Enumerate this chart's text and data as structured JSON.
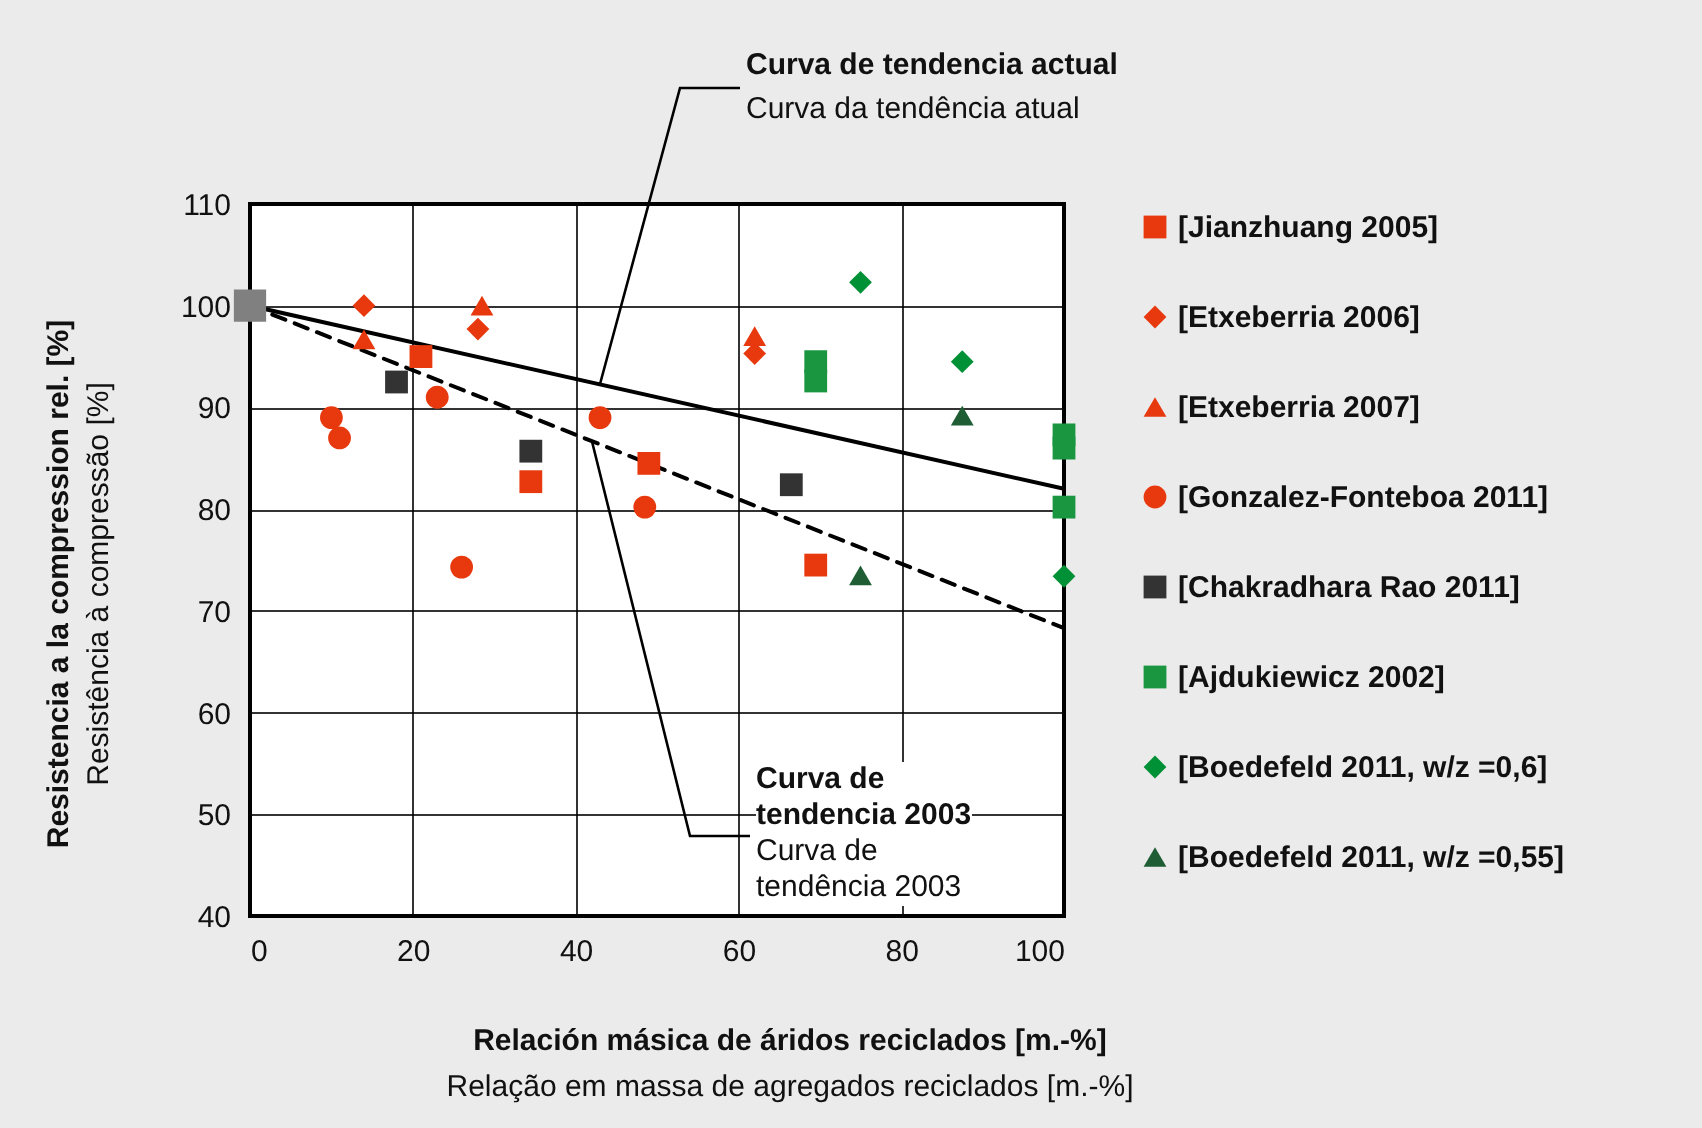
{
  "chart_data": {
    "type": "scatter",
    "xlabel": "Relación másica de áridos reciclados [m.-%]\nRelação em massa de agregados reciclados [m.-%]",
    "ylabel": "Resistencia a la compression rel. [%]\nResistência à compressão [%]",
    "annotations": [
      {
        "text": "Curva de tendencia actual",
        "x": 43,
        "y": 92.3
      },
      "Curva da tendência atual",
      {
        "text": "Curva de\ntendencia 2003",
        "x": 42,
        "y": 86.7
      },
      "Curva de\ntendência 2003"
    ],
    "xlim": [
      0,
      100
    ],
    "xticks": [
      0,
      20,
      40,
      60,
      80,
      100
    ],
    "ylim": [
      40,
      110
    ],
    "yticks": [
      40,
      50,
      60,
      70,
      80,
      90,
      100,
      110
    ],
    "grid": true,
    "legend": "right",
    "series": [
      {
        "type": "line",
        "color": "#000000",
        "line_style": "solid",
        "x": [
          0,
          100
        ],
        "values": [
          100,
          82
        ]
      },
      {
        "type": "line",
        "color": "#000000",
        "line_style": "dashed",
        "x": [
          0,
          100
        ],
        "values": [
          100,
          68.3
        ]
      },
      {
        "name": "[Jianzhuang 2005]",
        "color": "#e8380d",
        "marker": "square",
        "x": [
          21,
          34.5,
          49,
          69.5
        ],
        "values": [
          95,
          82.7,
          84.5,
          74.5
        ]
      },
      {
        "name": "[Etxeberria 2006]",
        "color": "#e8380d",
        "marker": "diamond",
        "x": [
          14,
          28,
          62
        ],
        "values": [
          100,
          97.7,
          95.3
        ]
      },
      {
        "name": "[Etxeberria 2007]",
        "color": "#e8380d",
        "marker": "triangle",
        "x": [
          14,
          28.5,
          62
        ],
        "values": [
          96.7,
          100,
          97
        ]
      },
      {
        "name": "[Gonzalez-Fonteboa 2011]",
        "color": "#e8380d",
        "marker": "circle",
        "x": [
          10,
          11,
          23,
          26,
          43,
          48.5
        ],
        "values": [
          89,
          87,
          91,
          74.3,
          89,
          80.2
        ]
      },
      {
        "name": "[Chakradhara Rao 2011]",
        "color": "#333333",
        "marker": "square",
        "x": [
          18,
          34.5,
          66.5
        ],
        "values": [
          92.5,
          85.7,
          82.4
        ]
      },
      {
        "name": "[Ajdukiewicz 2002]",
        "color": "#1a9641",
        "marker": "square",
        "x": [
          69.5,
          69.5,
          100,
          100,
          100
        ],
        "values": [
          94.5,
          92.6,
          87.3,
          86,
          80.2
        ]
      },
      {
        "name": "[Boedefeld 2011, w/z =0,6]",
        "color": "#009036",
        "marker": "diamond",
        "x": [
          75,
          87.5,
          100
        ],
        "values": [
          102.3,
          94.5,
          73.4
        ]
      },
      {
        "name": "[Boedefeld 2011, w/z =0,55]",
        "color": "#1f5e34",
        "marker": "triangle",
        "x": [
          87.5,
          75
        ],
        "values": [
          89.2,
          73.5
        ]
      },
      {
        "color": "#808080",
        "marker": "square",
        "x": [
          0
        ],
        "values": [
          100
        ]
      }
    ]
  }
}
